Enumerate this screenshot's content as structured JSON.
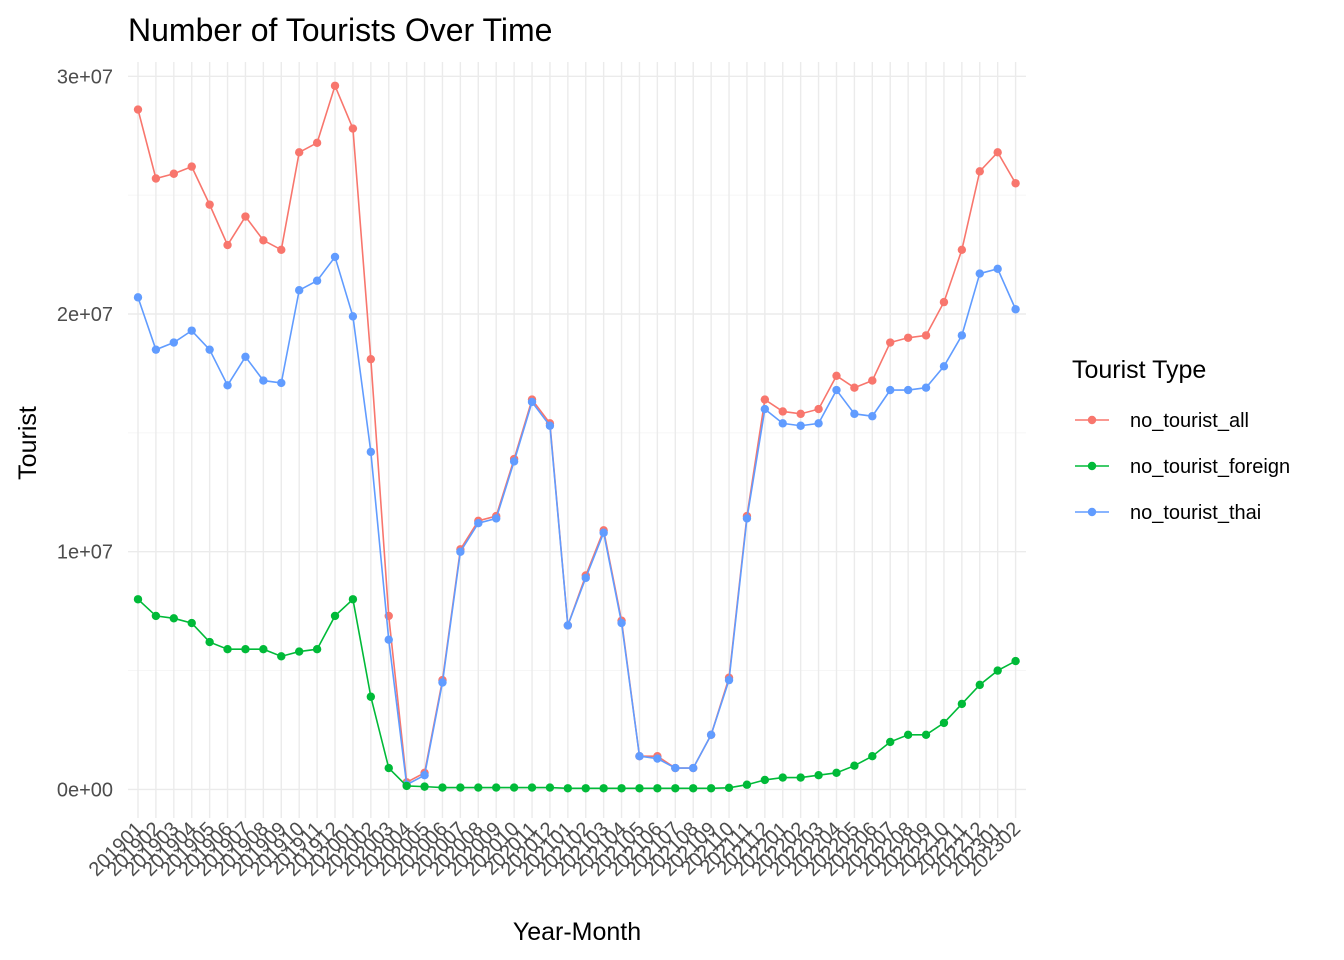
{
  "chart_data": {
    "type": "line",
    "title": "Number of Tourists Over Time",
    "xlabel": "Year-Month",
    "ylabel": "Tourist",
    "legend_title": "Tourist Type",
    "legend_position": "right",
    "grid": true,
    "ylim": [
      -1200000,
      30600000
    ],
    "y_ticks": [
      0,
      10000000,
      20000000,
      30000000
    ],
    "y_tick_labels": [
      "0e+00",
      "1e+07",
      "2e+07",
      "3e+07"
    ],
    "categories": [
      "201901",
      "201902",
      "201903",
      "201904",
      "201905",
      "201906",
      "201907",
      "201908",
      "201909",
      "201910",
      "201911",
      "201912",
      "202001",
      "202002",
      "202003",
      "202004",
      "202005",
      "202006",
      "202007",
      "202008",
      "202009",
      "202010",
      "202011",
      "202012",
      "202101",
      "202102",
      "202103",
      "202104",
      "202105",
      "202106",
      "202107",
      "202108",
      "202109",
      "202110",
      "202111",
      "202112",
      "202201",
      "202202",
      "202203",
      "202204",
      "202205",
      "202206",
      "202207",
      "202208",
      "202209",
      "202210",
      "202211",
      "202212",
      "202301",
      "202302"
    ],
    "series": [
      {
        "name": "no_tourist_all",
        "color": "#f8766d",
        "values": [
          28600000,
          25700000,
          25900000,
          26200000,
          24600000,
          22900000,
          24100000,
          23100000,
          22700000,
          26800000,
          27200000,
          29600000,
          27800000,
          18100000,
          7300000,
          300000,
          700000,
          4600000,
          10100000,
          11300000,
          11500000,
          13900000,
          16400000,
          15400000,
          6900000,
          9000000,
          10900000,
          7100000,
          1400000,
          1400000,
          900000,
          900000,
          2300000,
          4700000,
          11500000,
          16400000,
          15900000,
          15800000,
          16000000,
          17400000,
          16900000,
          17200000,
          18800000,
          19000000,
          19100000,
          20500000,
          22700000,
          26000000,
          26800000,
          25500000
        ]
      },
      {
        "name": "no_tourist_foreign",
        "color": "#00ba38",
        "values": [
          8000000,
          7300000,
          7200000,
          7000000,
          6200000,
          5900000,
          5900000,
          5900000,
          5600000,
          5800000,
          5900000,
          7300000,
          8000000,
          3900000,
          900000,
          150000,
          120000,
          80000,
          80000,
          80000,
          80000,
          80000,
          80000,
          80000,
          50000,
          50000,
          50000,
          50000,
          50000,
          50000,
          50000,
          50000,
          50000,
          70000,
          200000,
          400000,
          500000,
          500000,
          600000,
          700000,
          1000000,
          1400000,
          2000000,
          2300000,
          2300000,
          2800000,
          3600000,
          4400000,
          5000000,
          5400000
        ]
      },
      {
        "name": "no_tourist_thai",
        "color": "#619cff",
        "values": [
          20700000,
          18500000,
          18800000,
          19300000,
          18500000,
          17000000,
          18200000,
          17200000,
          17100000,
          21000000,
          21400000,
          22400000,
          19900000,
          14200000,
          6300000,
          200000,
          600000,
          4500000,
          10000000,
          11200000,
          11400000,
          13800000,
          16300000,
          15300000,
          6900000,
          8900000,
          10800000,
          7000000,
          1400000,
          1300000,
          900000,
          900000,
          2300000,
          4600000,
          11400000,
          16000000,
          15400000,
          15300000,
          15400000,
          16800000,
          15800000,
          15700000,
          16800000,
          16800000,
          16900000,
          17800000,
          19100000,
          21700000,
          21900000,
          20200000
        ]
      }
    ]
  }
}
